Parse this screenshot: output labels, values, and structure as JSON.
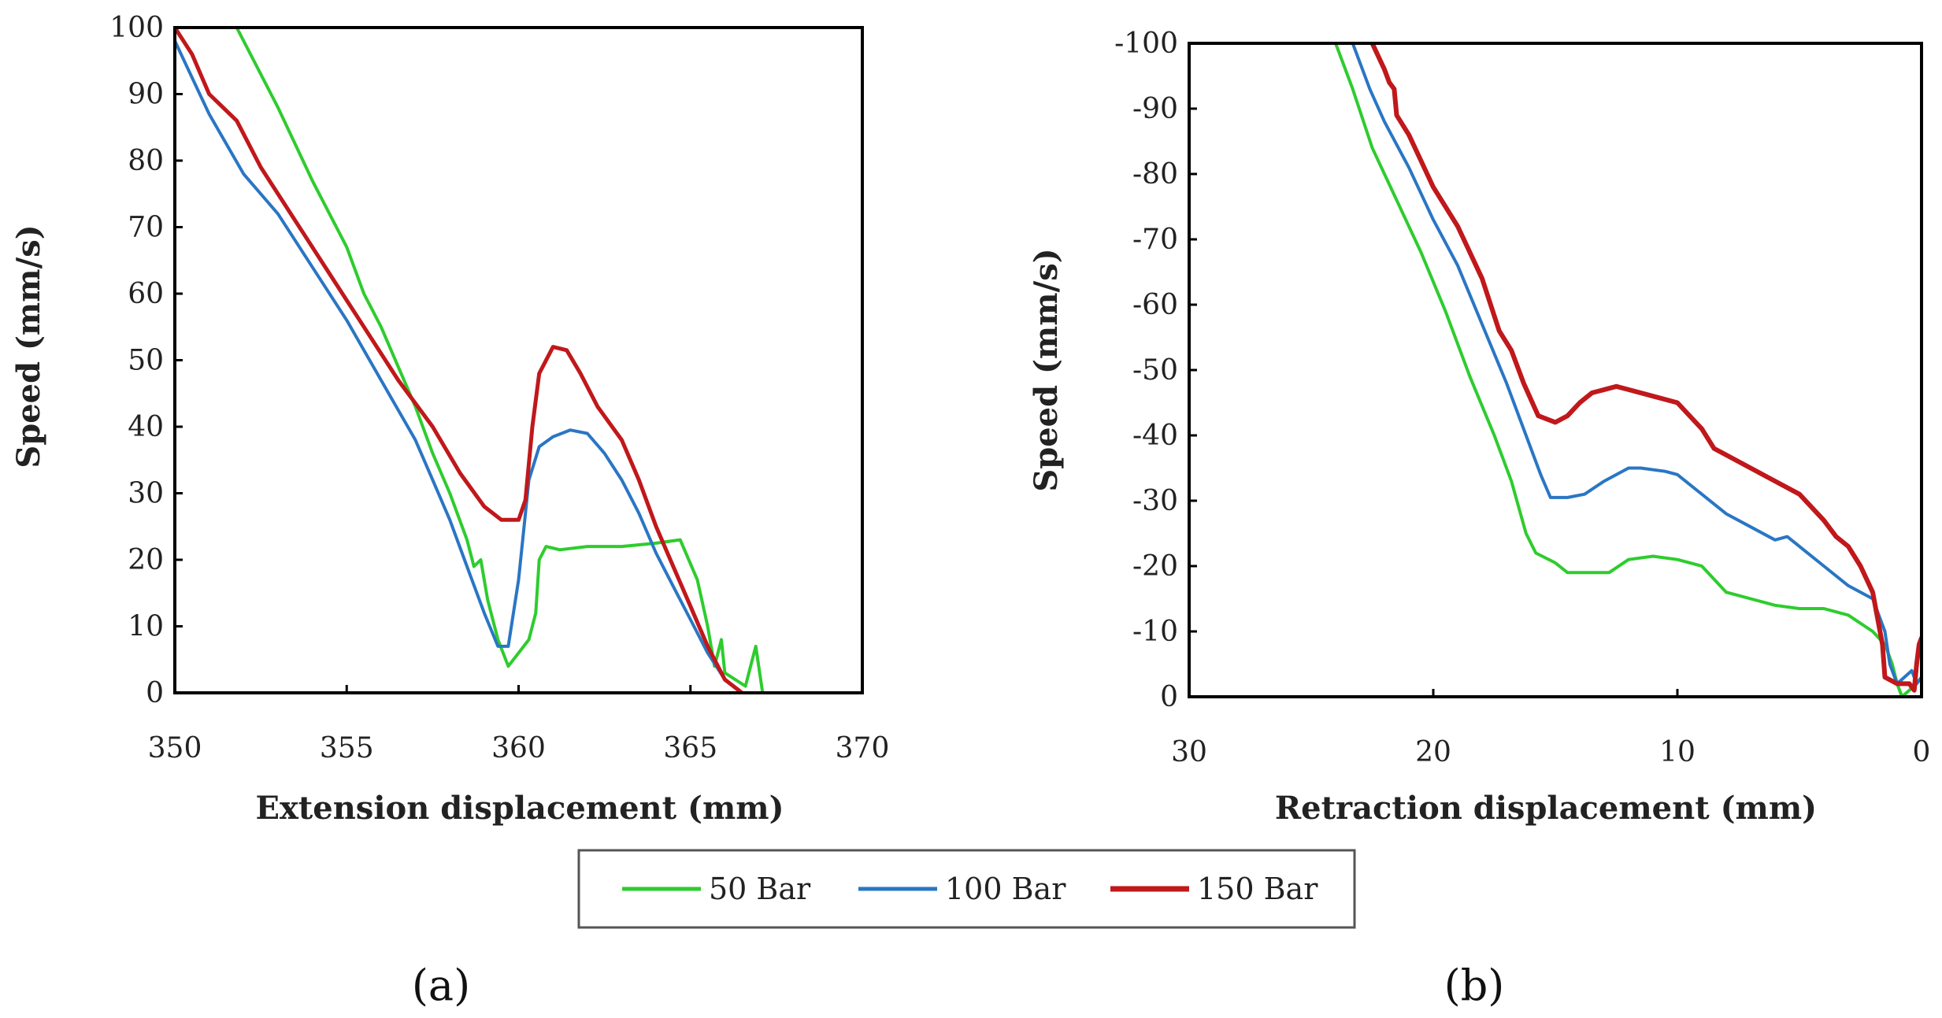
{
  "chart_data": [
    {
      "type": "line",
      "panel": "a",
      "caption": "(a)",
      "xlabel": "Extension displacement (mm)",
      "ylabel": "Speed (mm/s)",
      "xlim": [
        350,
        370
      ],
      "ylim": [
        0,
        100
      ],
      "xticks": [
        "350",
        "355",
        "360",
        "365",
        "370"
      ],
      "yticks": [
        "0",
        "10",
        "20",
        "30",
        "40",
        "50",
        "60",
        "70",
        "80",
        "90",
        "100"
      ],
      "series": [
        {
          "name": "50 Bar",
          "color": "#2ecc2e",
          "points": [
            [
              351.8,
              100
            ],
            [
              353,
              88
            ],
            [
              354,
              77
            ],
            [
              355,
              67
            ],
            [
              355.5,
              60
            ],
            [
              356,
              55
            ],
            [
              356.5,
              49
            ],
            [
              357,
              43
            ],
            [
              357.5,
              36
            ],
            [
              358,
              30
            ],
            [
              358.5,
              23
            ],
            [
              358.7,
              19
            ],
            [
              358.9,
              20
            ],
            [
              359.1,
              14
            ],
            [
              359.4,
              8
            ],
            [
              359.7,
              4
            ],
            [
              360,
              6
            ],
            [
              360.3,
              8
            ],
            [
              360.5,
              12
            ],
            [
              360.6,
              20
            ],
            [
              360.8,
              22
            ],
            [
              361.2,
              21.5
            ],
            [
              362,
              22
            ],
            [
              363,
              22
            ],
            [
              364,
              22.5
            ],
            [
              364.7,
              23
            ],
            [
              365.2,
              17
            ],
            [
              365.5,
              10
            ],
            [
              365.7,
              4
            ],
            [
              365.9,
              8
            ],
            [
              366,
              3
            ],
            [
              366.3,
              2
            ],
            [
              366.6,
              1
            ],
            [
              366.8,
              5
            ],
            [
              366.9,
              7
            ],
            [
              367.1,
              0
            ]
          ]
        },
        {
          "name": "100 Bar",
          "color": "#2a76c4",
          "points": [
            [
              350,
              98
            ],
            [
              351,
              87
            ],
            [
              352,
              78
            ],
            [
              353,
              72
            ],
            [
              354,
              64
            ],
            [
              355,
              56
            ],
            [
              356,
              47
            ],
            [
              357,
              38
            ],
            [
              357.5,
              32
            ],
            [
              358,
              26
            ],
            [
              358.5,
              19
            ],
            [
              359,
              12
            ],
            [
              359.4,
              7
            ],
            [
              359.7,
              7
            ],
            [
              360,
              17
            ],
            [
              360.3,
              32
            ],
            [
              360.6,
              37
            ],
            [
              361,
              38.5
            ],
            [
              361.5,
              39.5
            ],
            [
              362,
              39
            ],
            [
              362.5,
              36
            ],
            [
              363,
              32
            ],
            [
              363.5,
              27
            ],
            [
              364,
              21
            ],
            [
              364.5,
              16
            ],
            [
              365,
              11
            ],
            [
              365.5,
              6
            ],
            [
              366,
              2
            ],
            [
              366.5,
              0
            ]
          ]
        },
        {
          "name": "150 Bar",
          "color": "#c0181b",
          "points": [
            [
              350,
              100
            ],
            [
              350.5,
              96
            ],
            [
              351,
              90
            ],
            [
              351.8,
              86
            ],
            [
              352.5,
              79
            ],
            [
              353.5,
              71
            ],
            [
              354.5,
              63
            ],
            [
              355.5,
              55
            ],
            [
              356.5,
              47
            ],
            [
              357.5,
              40
            ],
            [
              358.3,
              33
            ],
            [
              359,
              28
            ],
            [
              359.5,
              26
            ],
            [
              360,
              26
            ],
            [
              360.2,
              29
            ],
            [
              360.4,
              40
            ],
            [
              360.6,
              48
            ],
            [
              361,
              52
            ],
            [
              361.4,
              51.5
            ],
            [
              361.8,
              48
            ],
            [
              362.3,
              43
            ],
            [
              363,
              38
            ],
            [
              363.5,
              32
            ],
            [
              364,
              25
            ],
            [
              364.5,
              19
            ],
            [
              365,
              13
            ],
            [
              365.5,
              7
            ],
            [
              366,
              2
            ],
            [
              366.5,
              0
            ]
          ]
        }
      ]
    },
    {
      "type": "line",
      "panel": "b",
      "caption": "(b)",
      "xlabel": "Retraction displacement (mm)",
      "ylabel": "Speed (mm/s)",
      "xlim": [
        30,
        0
      ],
      "ylim": [
        0,
        -100
      ],
      "xticks": [
        "30",
        "20",
        "10",
        "0"
      ],
      "yticks": [
        "0",
        "-10",
        "-20",
        "-30",
        "-40",
        "-50",
        "-60",
        "-70",
        "-80",
        "-90",
        "-100"
      ],
      "series": [
        {
          "name": "50 Bar",
          "color": "#2ecc2e",
          "points": [
            [
              24,
              -100
            ],
            [
              23.3,
              -93
            ],
            [
              22.5,
              -84
            ],
            [
              21.5,
              -76
            ],
            [
              20.5,
              -68
            ],
            [
              19.5,
              -59
            ],
            [
              18.5,
              -49
            ],
            [
              17.5,
              -40
            ],
            [
              16.8,
              -33
            ],
            [
              16.2,
              -25
            ],
            [
              15.8,
              -22
            ],
            [
              15,
              -20.5
            ],
            [
              14.5,
              -19
            ],
            [
              13.5,
              -19
            ],
            [
              12.8,
              -19
            ],
            [
              12,
              -21
            ],
            [
              11,
              -21.5
            ],
            [
              10,
              -21
            ],
            [
              9,
              -20
            ],
            [
              8.5,
              -18
            ],
            [
              8,
              -16
            ],
            [
              7,
              -15
            ],
            [
              6,
              -14
            ],
            [
              5,
              -13.5
            ],
            [
              4,
              -13.5
            ],
            [
              3,
              -12.5
            ],
            [
              2,
              -10
            ],
            [
              1.5,
              -8
            ],
            [
              1.2,
              -5
            ],
            [
              1,
              -2
            ],
            [
              0.8,
              0
            ],
            [
              0.5,
              -1
            ],
            [
              0.2,
              -2
            ],
            [
              0,
              -3
            ]
          ]
        },
        {
          "name": "100 Bar",
          "color": "#2a76c4",
          "points": [
            [
              23.3,
              -100
            ],
            [
              22.6,
              -93
            ],
            [
              22,
              -88
            ],
            [
              21,
              -81
            ],
            [
              20,
              -73
            ],
            [
              19,
              -66
            ],
            [
              18,
              -57
            ],
            [
              17,
              -48
            ],
            [
              16.2,
              -40
            ],
            [
              15.6,
              -34
            ],
            [
              15.2,
              -30.5
            ],
            [
              14.5,
              -30.5
            ],
            [
              13.8,
              -31
            ],
            [
              13,
              -33
            ],
            [
              12,
              -35
            ],
            [
              11.5,
              -35
            ],
            [
              10.5,
              -34.5
            ],
            [
              10,
              -34
            ],
            [
              9,
              -31
            ],
            [
              8,
              -28
            ],
            [
              7,
              -26
            ],
            [
              6,
              -24
            ],
            [
              5.5,
              -24.5
            ],
            [
              5,
              -23
            ],
            [
              4,
              -20
            ],
            [
              3,
              -17
            ],
            [
              2,
              -15
            ],
            [
              1.7,
              -12
            ],
            [
              1.5,
              -10
            ],
            [
              1.3,
              -5
            ],
            [
              1,
              -2
            ],
            [
              0.7,
              -3
            ],
            [
              0.4,
              -4
            ],
            [
              0.2,
              -2
            ],
            [
              0,
              -3
            ]
          ]
        },
        {
          "name": "150 Bar",
          "color": "#c0181b",
          "points": [
            [
              22.5,
              -100
            ],
            [
              22,
              -96
            ],
            [
              21.8,
              -94
            ],
            [
              21.6,
              -93
            ],
            [
              21.5,
              -89
            ],
            [
              21,
              -86
            ],
            [
              20.5,
              -82
            ],
            [
              20,
              -78
            ],
            [
              19,
              -72
            ],
            [
              18,
              -64
            ],
            [
              17.3,
              -56
            ],
            [
              16.8,
              -53
            ],
            [
              16.3,
              -48
            ],
            [
              15.7,
              -43
            ],
            [
              15,
              -42
            ],
            [
              14.5,
              -43
            ],
            [
              14,
              -45
            ],
            [
              13.5,
              -46.5
            ],
            [
              12.5,
              -47.5
            ],
            [
              12,
              -47
            ],
            [
              11,
              -46
            ],
            [
              10,
              -45
            ],
            [
              9,
              -41
            ],
            [
              8.5,
              -38
            ],
            [
              8,
              -37
            ],
            [
              7,
              -35
            ],
            [
              6,
              -33
            ],
            [
              5,
              -31
            ],
            [
              4.5,
              -29
            ],
            [
              4,
              -27
            ],
            [
              3.5,
              -24.5
            ],
            [
              3,
              -23
            ],
            [
              2.5,
              -20
            ],
            [
              2,
              -16
            ],
            [
              1.8,
              -12
            ],
            [
              1.6,
              -8
            ],
            [
              1.5,
              -3
            ],
            [
              1,
              -2
            ],
            [
              0.5,
              -2
            ],
            [
              0.3,
              -1
            ],
            [
              0.2,
              -5
            ],
            [
              0.1,
              -8
            ],
            [
              0,
              -9
            ]
          ]
        }
      ]
    }
  ],
  "legend": {
    "items": [
      {
        "label": "50 Bar",
        "color": "#2ecc2e"
      },
      {
        "label": "100 Bar",
        "color": "#2a76c4"
      },
      {
        "label": "150 Bar",
        "color": "#c0181b"
      }
    ]
  }
}
